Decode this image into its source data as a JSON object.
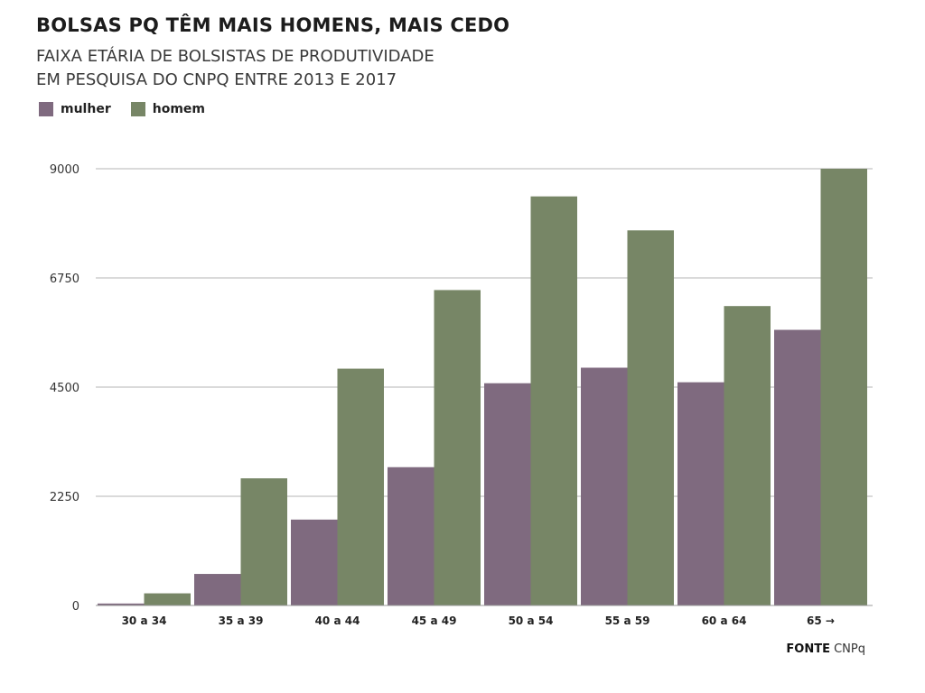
{
  "title": "BOLSAS PQ TÊM MAIS HOMENS, MAIS CEDO",
  "subtitle_line1": "FAIXA ETÁRIA DE BOLSISTAS DE PRODUTIVIDADE",
  "subtitle_line2": "EM PESQUISA DO CNPQ ENTRE 2013 E 2017",
  "source_label": "FONTE",
  "source_value": "CNPq",
  "colors": {
    "mulher": "#7f6a7f",
    "homem": "#778666",
    "grid": "#b5b5b5",
    "axis_text": "#333333"
  },
  "chart_data": {
    "type": "bar",
    "categories": [
      "30 a 34",
      "35 a 39",
      "40 a 44",
      "45 a 49",
      "50 a 54",
      "55 a 59",
      "60 a 64",
      "65 →"
    ],
    "series": [
      {
        "name": "mulher",
        "values": [
          40,
          650,
          1770,
          2850,
          4580,
          4900,
          4600,
          5680
        ]
      },
      {
        "name": "homem",
        "values": [
          250,
          2620,
          4880,
          6500,
          8430,
          7730,
          6170,
          9000
        ]
      }
    ],
    "yticks": [
      0,
      2250,
      4500,
      6750,
      9000
    ],
    "ylim": [
      0,
      9000
    ],
    "grid": true,
    "legend": "top-left"
  }
}
